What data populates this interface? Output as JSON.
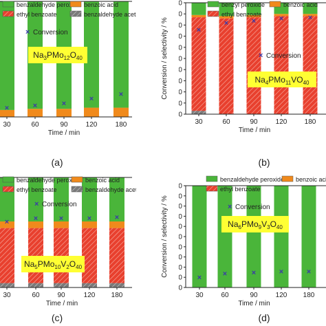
{
  "legend_labels": {
    "benzaldehyde_peroxide": "benzaldehyde peroxide",
    "benzyl_peroxide": "benzyl peroxide",
    "benzoic_acid": "benzoic acid",
    "ethyl_benzoate": "ethyl benzoate",
    "benzaldehyde_acetal": "benzaldehyde acetal",
    "conversion": "Conversion"
  },
  "colors": {
    "peroxide": "#4ab53a",
    "benzoic_acid": "#f08a1c",
    "ethyl_benzoate": "#e8402e",
    "acetal": "#7a7a7a",
    "conversion_marker": "#3a3aa8",
    "formula_box": "#ffff33"
  },
  "chart_data": [
    {
      "panel_label": "(a)",
      "type": "bar",
      "stacked": true,
      "catalyst": {
        "parts": [
          [
            "Na",
            ""
          ],
          [
            "3",
            "sub"
          ],
          [
            "PMo",
            ""
          ],
          [
            "12",
            "sub"
          ],
          [
            "O",
            ""
          ],
          [
            "40",
            "sub"
          ]
        ]
      },
      "xlabel": "Time / min",
      "ylabel": "",
      "categories": [
        "30",
        "60",
        "90",
        "120",
        "180"
      ],
      "ylim": [
        0,
        100
      ],
      "series": [
        {
          "name": "ethyl benzoate",
          "values": [
            0,
            0,
            0,
            0,
            0
          ]
        },
        {
          "name": "benzoic acid",
          "values": [
            6,
            7,
            7,
            8,
            8
          ]
        },
        {
          "name": "benzaldehyde peroxide",
          "values": [
            94,
            93,
            93,
            92,
            92
          ]
        }
      ],
      "conversion": [
        8,
        10,
        12,
        16,
        20
      ],
      "legend": [
        {
          "label": "benzaldehyde peroxide",
          "color": "peroxide"
        },
        {
          "label": "benzoic acid",
          "color": "benzoic_acid"
        },
        {
          "label": "ethyl benzoate",
          "color": "ethyl_benzoate"
        },
        {
          "label": "benzaldehyde acetal",
          "color": "acetal"
        }
      ]
    },
    {
      "panel_label": "(b)",
      "type": "bar",
      "stacked": true,
      "catalyst": {
        "parts": [
          [
            "Na",
            ""
          ],
          [
            "4",
            "sub"
          ],
          [
            "PMo",
            ""
          ],
          [
            "11",
            "sub"
          ],
          [
            "VO",
            ""
          ],
          [
            "40",
            "sub"
          ]
        ]
      },
      "xlabel": "Time / min",
      "ylabel": "Conversion / selectivity / %",
      "categories": [
        "30",
        "60",
        "90",
        "120",
        "180"
      ],
      "yticks": [
        0,
        10,
        20,
        30,
        40,
        50,
        60,
        70,
        80,
        90,
        100
      ],
      "ylim": [
        0,
        100
      ],
      "series": [
        {
          "name": "benzaldehyde acetal",
          "values": [
            3,
            0,
            0,
            0,
            0
          ]
        },
        {
          "name": "ethyl benzoate",
          "values": [
            84,
            86,
            87,
            88,
            88
          ]
        },
        {
          "name": "benzoic acid",
          "values": [
            2,
            2,
            2,
            2,
            2
          ]
        },
        {
          "name": "benzyl peroxide",
          "values": [
            11,
            12,
            11,
            10,
            10
          ]
        }
      ],
      "conversion": [
        76,
        82,
        84,
        86,
        87
      ],
      "legend": [
        {
          "label": "benzyl peroxide",
          "color": "peroxide"
        },
        {
          "label": "benzoic acid",
          "color": "benzoic_acid"
        },
        {
          "label": "ethyl benzoate",
          "color": "ethyl_benzoate"
        }
      ]
    },
    {
      "panel_label": "(c)",
      "type": "bar",
      "stacked": true,
      "catalyst": {
        "parts": [
          [
            "Na",
            ""
          ],
          [
            "5",
            "sub"
          ],
          [
            "PMo",
            ""
          ],
          [
            "10",
            "sub"
          ],
          [
            "V",
            ""
          ],
          [
            "2",
            "sub"
          ],
          [
            "O",
            ""
          ],
          [
            "40",
            "sub"
          ]
        ]
      },
      "xlabel": "Time / min",
      "ylabel": "",
      "categories": [
        "30",
        "60",
        "90",
        "120",
        "180"
      ],
      "ylim": [
        0,
        100
      ],
      "series": [
        {
          "name": "benzaldehyde acetal",
          "values": [
            4,
            4,
            4,
            4,
            4
          ]
        },
        {
          "name": "ethyl benzoate",
          "values": [
            50,
            50,
            50,
            50,
            50
          ]
        },
        {
          "name": "benzoic acid",
          "values": [
            6,
            6,
            6,
            6,
            6
          ]
        },
        {
          "name": "benzaldehyde peroxide",
          "values": [
            40,
            40,
            40,
            40,
            40
          ]
        }
      ],
      "conversion": [
        60,
        63,
        63,
        63,
        64
      ],
      "legend": [
        {
          "label": "benzaldehyde peroxide",
          "color": "peroxide"
        },
        {
          "label": "benzoic acid",
          "color": "benzoic_acid"
        },
        {
          "label": "ethyl benzoate",
          "color": "ethyl_benzoate"
        },
        {
          "label": "benzaldehyde acetal",
          "color": "acetal"
        }
      ]
    },
    {
      "panel_label": "(d)",
      "type": "bar",
      "stacked": true,
      "catalyst": {
        "parts": [
          [
            "Na",
            ""
          ],
          [
            "6",
            "sub"
          ],
          [
            "PMo",
            ""
          ],
          [
            "9",
            "sub"
          ],
          [
            "V",
            ""
          ],
          [
            "3",
            "sub"
          ],
          [
            "O",
            ""
          ],
          [
            "40",
            "sub"
          ]
        ]
      },
      "xlabel": "Time / min",
      "ylabel": "Conversion / selectivity / %",
      "categories": [
        "30",
        "60",
        "90",
        "120",
        "180"
      ],
      "yticks": [
        0,
        10,
        20,
        30,
        40,
        50,
        60,
        70,
        80,
        90,
        100
      ],
      "ylim": [
        0,
        100
      ],
      "series": [
        {
          "name": "ethyl benzoate",
          "values": [
            0,
            0,
            0,
            0,
            0
          ]
        },
        {
          "name": "benzoic acid",
          "values": [
            0,
            0,
            0,
            0,
            0
          ]
        },
        {
          "name": "benzaldehyde peroxide",
          "values": [
            100,
            100,
            100,
            100,
            100
          ]
        }
      ],
      "conversion": [
        10,
        14,
        15,
        16,
        16
      ],
      "legend": [
        {
          "label": "benzaldehyde peroxide",
          "color": "peroxide"
        },
        {
          "label": "benzoic acid",
          "color": "benzoic_acid"
        },
        {
          "label": "ethyl benzoate",
          "color": "ethyl_benzoate"
        }
      ]
    }
  ]
}
